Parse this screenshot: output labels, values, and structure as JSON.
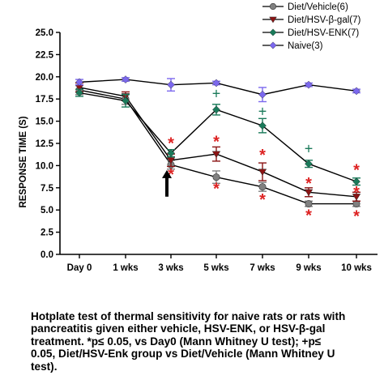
{
  "chart_data": {
    "type": "line",
    "ylabel": "RESPONSE TIME (S)",
    "categories": [
      "Day 0",
      "1 wks",
      "3 wks",
      "5 wks",
      "7 wks",
      "9 wks",
      "10 wks"
    ],
    "yticks": [
      "0.0",
      "2.5",
      "5.0",
      "7.5",
      "10.0",
      "12.5",
      "15.0",
      "17.5",
      "20.0",
      "22.5",
      "25.0"
    ],
    "ylim": [
      0,
      25
    ],
    "legend_position": "top-right",
    "series": [
      {
        "name": "Diet/Vehicle(6)",
        "color": "#808080",
        "marker": "circle",
        "values": [
          18.5,
          17.5,
          10.1,
          8.7,
          7.6,
          5.7,
          5.7
        ],
        "errors": [
          0.5,
          0.6,
          0.5,
          0.7,
          0.5,
          0.3,
          0.3
        ]
      },
      {
        "name": "Diet/HSV-β-gal(7)",
        "color": "#8b1414",
        "marker": "triangle-down",
        "values": [
          18.8,
          17.8,
          10.6,
          11.3,
          9.3,
          7.0,
          6.5
        ],
        "errors": [
          0.5,
          0.5,
          0.7,
          0.8,
          1.0,
          0.5,
          0.5
        ]
      },
      {
        "name": "Diet/HSV-ENK(7)",
        "color": "#1a7a5a",
        "marker": "diamond",
        "values": [
          18.2,
          17.3,
          11.4,
          16.3,
          14.5,
          10.2,
          8.2
        ],
        "errors": [
          0.4,
          0.7,
          0.4,
          0.6,
          0.8,
          0.4,
          0.4
        ]
      },
      {
        "name": "Naive(3)",
        "color": "#7b68ee",
        "marker": "diamond",
        "values": [
          19.4,
          19.7,
          19.1,
          19.3,
          18.0,
          19.1,
          18.4
        ],
        "errors": [
          0.3,
          0.2,
          0.7,
          0.2,
          0.8,
          0.2,
          0.2
        ]
      }
    ],
    "annotations": [
      {
        "text": "*",
        "x": "3 wks",
        "y": 12.8,
        "color": "#dd2222"
      },
      {
        "text": "*",
        "x": "3 wks",
        "y": 9.3,
        "color": "#dd2222"
      },
      {
        "text": "*",
        "x": "5 wks",
        "y": 13.0,
        "color": "#dd2222"
      },
      {
        "text": "*",
        "x": "5 wks",
        "y": 7.7,
        "color": "#dd2222"
      },
      {
        "text": "*",
        "x": "7 wks",
        "y": 11.5,
        "color": "#dd2222"
      },
      {
        "text": "*",
        "x": "7 wks",
        "y": 6.5,
        "color": "#dd2222"
      },
      {
        "text": "*",
        "x": "9 wks",
        "y": 8.3,
        "color": "#dd2222"
      },
      {
        "text": "*",
        "x": "9 wks",
        "y": 4.7,
        "color": "#dd2222"
      },
      {
        "text": "*",
        "x": "10 wks",
        "y": 9.8,
        "color": "#dd2222"
      },
      {
        "text": "*",
        "x": "10 wks",
        "y": 7.3,
        "color": "#dd2222"
      },
      {
        "text": "*",
        "x": "10 wks",
        "y": 4.6,
        "color": "#dd2222"
      },
      {
        "text": "+",
        "x": "5 wks",
        "y": 18.2,
        "color": "#1a7a5a"
      },
      {
        "text": "+",
        "x": "7 wks",
        "y": 16.2,
        "color": "#1a7a5a"
      },
      {
        "text": "+",
        "x": "9 wks",
        "y": 12.0,
        "color": "#1a7a5a"
      }
    ],
    "arrow": {
      "x": "3 wks",
      "y_from": 6.5,
      "y_to": 9.5
    }
  },
  "caption": {
    "lines": [
      "Hotplate test of thermal sensitivity for naive rats or rats with",
      "pancreatitis given either vehicle, HSV-ENK, or HSV-β-gal",
      "treatment.  *p≤ 0.05, vs Day0 (Mann Whitney U test); +p≤",
      "0.05, Diet/HSV-Enk group vs Diet/Vehicle (Mann Whitney U",
      "test)."
    ]
  }
}
